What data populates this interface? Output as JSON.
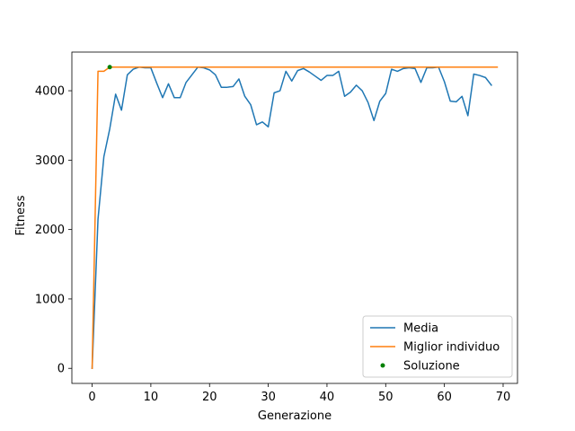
{
  "chart_data": {
    "type": "line",
    "xlabel": "Generazione",
    "ylabel": "Fitness",
    "xlim": [
      -3.45,
      72.45
    ],
    "ylim": [
      -217,
      4557
    ],
    "xticks": [
      0,
      10,
      20,
      30,
      40,
      50,
      60,
      70
    ],
    "yticks": [
      0,
      1000,
      2000,
      3000,
      4000
    ],
    "grid": false,
    "legend_position": "lower right",
    "series": [
      {
        "name": "Media",
        "type": "line",
        "color": "#1f77b4",
        "x": [
          0,
          1,
          2,
          3,
          4,
          5,
          6,
          7,
          8,
          9,
          10,
          11,
          12,
          13,
          14,
          15,
          16,
          17,
          18,
          19,
          20,
          21,
          22,
          23,
          24,
          25,
          26,
          27,
          28,
          29,
          30,
          31,
          32,
          33,
          34,
          35,
          36,
          37,
          38,
          39,
          40,
          41,
          42,
          43,
          44,
          45,
          46,
          47,
          48,
          49,
          50,
          51,
          52,
          53,
          54,
          55,
          56,
          57,
          58,
          59,
          60,
          61,
          62,
          63,
          64,
          65,
          66,
          67,
          68
        ],
        "y": [
          0,
          2150,
          3050,
          3450,
          3950,
          3720,
          4230,
          4310,
          4340,
          4330,
          4330,
          4110,
          3900,
          4100,
          3900,
          3900,
          4120,
          4230,
          4340,
          4330,
          4300,
          4230,
          4050,
          4050,
          4060,
          4170,
          3920,
          3800,
          3510,
          3550,
          3480,
          3970,
          4000,
          4280,
          4140,
          4290,
          4320,
          4270,
          4210,
          4150,
          4220,
          4220,
          4280,
          3920,
          3980,
          4080,
          4000,
          3830,
          3570,
          3850,
          3960,
          4310,
          4280,
          4320,
          4330,
          4320,
          4120,
          4330,
          4330,
          4340,
          4130,
          3850,
          3840,
          3920,
          3640,
          4240,
          4220,
          4190,
          4080
        ]
      },
      {
        "name": "Miglior individuo",
        "type": "line",
        "color": "#ff7f0e",
        "x": [
          0,
          1,
          2,
          3,
          69
        ],
        "y": [
          0,
          4280,
          4280,
          4340,
          4340
        ]
      },
      {
        "name": "Soluzione",
        "type": "scatter",
        "color": "#008000",
        "x": [
          3
        ],
        "y": [
          4340
        ]
      }
    ]
  }
}
